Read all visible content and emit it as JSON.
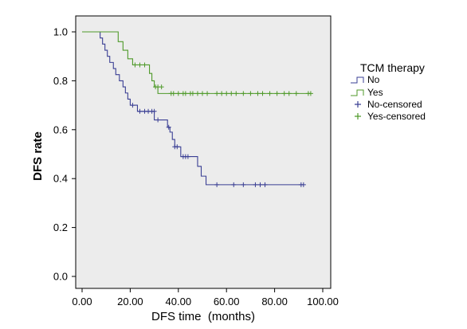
{
  "chart_data": {
    "type": "line",
    "subtype": "kaplan-meier",
    "xlabel": "DFS time  (months)",
    "ylabel": "DFS rate",
    "xlim": [
      0,
      100
    ],
    "ylim": [
      0,
      1.0
    ],
    "xticks": [
      "0.00",
      "20.00",
      "40.00",
      "60.00",
      "80.00",
      "100.00"
    ],
    "xtick_values": [
      0,
      20,
      40,
      60,
      80,
      100
    ],
    "yticks": [
      "0.0",
      "0.2",
      "0.4",
      "0.6",
      "0.8",
      "1.0"
    ],
    "ytick_values": [
      0,
      0.2,
      0.4,
      0.6,
      0.8,
      1.0
    ],
    "grid": false,
    "plot_background": "#ececec",
    "legend": {
      "title": "TCM therapy",
      "placement": "right",
      "entries": [
        {
          "label": "No",
          "kind": "line",
          "color": "#3a3f94"
        },
        {
          "label": "Yes",
          "kind": "line",
          "color": "#4f9a2a"
        },
        {
          "label": "No-censored",
          "kind": "censor",
          "color": "#3a3f94"
        },
        {
          "label": "Yes-censored",
          "kind": "censor",
          "color": "#4f9a2a"
        }
      ]
    },
    "series": [
      {
        "name": "No",
        "color": "#3a3f94",
        "steps": [
          [
            0,
            1.0
          ],
          [
            7.5,
            0.975
          ],
          [
            8.5,
            0.95
          ],
          [
            9.5,
            0.925
          ],
          [
            10.5,
            0.9
          ],
          [
            11.5,
            0.875
          ],
          [
            13,
            0.85
          ],
          [
            14,
            0.825
          ],
          [
            15.5,
            0.8
          ],
          [
            17,
            0.775
          ],
          [
            18,
            0.75
          ],
          [
            19,
            0.725
          ],
          [
            20,
            0.7
          ],
          [
            23,
            0.675
          ],
          [
            30,
            0.64
          ],
          [
            35.5,
            0.61
          ],
          [
            36.5,
            0.59
          ],
          [
            37.5,
            0.56
          ],
          [
            38.5,
            0.53
          ],
          [
            41,
            0.49
          ],
          [
            48,
            0.45
          ],
          [
            49.5,
            0.41
          ],
          [
            51.5,
            0.375
          ],
          [
            92,
            0.375
          ]
        ],
        "censored": [
          [
            21,
            0.7
          ],
          [
            24,
            0.675
          ],
          [
            26,
            0.675
          ],
          [
            27.5,
            0.675
          ],
          [
            29,
            0.675
          ],
          [
            30,
            0.675
          ],
          [
            31.5,
            0.64
          ],
          [
            36,
            0.61
          ],
          [
            38.5,
            0.53
          ],
          [
            39.5,
            0.53
          ],
          [
            42,
            0.49
          ],
          [
            43,
            0.49
          ],
          [
            44,
            0.49
          ],
          [
            56,
            0.375
          ],
          [
            63,
            0.375
          ],
          [
            67,
            0.375
          ],
          [
            72,
            0.375
          ],
          [
            74,
            0.375
          ],
          [
            76,
            0.375
          ],
          [
            91,
            0.375
          ],
          [
            92,
            0.375
          ]
        ]
      },
      {
        "name": "Yes",
        "color": "#4f9a2a",
        "steps": [
          [
            0,
            1.0
          ],
          [
            7.5,
            1.0
          ],
          [
            15,
            0.96
          ],
          [
            17,
            0.925
          ],
          [
            19,
            0.89
          ],
          [
            21,
            0.865
          ],
          [
            28,
            0.83
          ],
          [
            29,
            0.8
          ],
          [
            30,
            0.775
          ],
          [
            31.5,
            0.748
          ],
          [
            95,
            0.748
          ]
        ],
        "censored": [
          [
            22,
            0.865
          ],
          [
            24,
            0.865
          ],
          [
            26,
            0.865
          ],
          [
            30.5,
            0.775
          ],
          [
            31.5,
            0.775
          ],
          [
            33,
            0.775
          ],
          [
            37,
            0.748
          ],
          [
            38,
            0.748
          ],
          [
            40,
            0.748
          ],
          [
            42,
            0.748
          ],
          [
            43,
            0.748
          ],
          [
            45,
            0.748
          ],
          [
            46,
            0.748
          ],
          [
            48,
            0.748
          ],
          [
            50,
            0.748
          ],
          [
            52,
            0.748
          ],
          [
            56,
            0.748
          ],
          [
            58,
            0.748
          ],
          [
            60,
            0.748
          ],
          [
            62,
            0.748
          ],
          [
            64,
            0.748
          ],
          [
            67,
            0.748
          ],
          [
            70,
            0.748
          ],
          [
            73,
            0.748
          ],
          [
            75,
            0.748
          ],
          [
            78,
            0.748
          ],
          [
            81,
            0.748
          ],
          [
            84,
            0.748
          ],
          [
            86,
            0.748
          ],
          [
            89,
            0.748
          ],
          [
            94,
            0.748
          ],
          [
            95,
            0.748
          ]
        ]
      }
    ]
  }
}
